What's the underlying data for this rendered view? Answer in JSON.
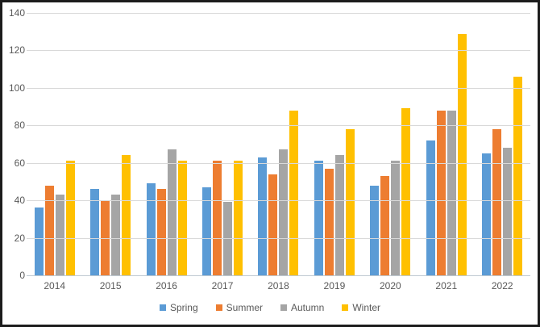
{
  "chart_data": {
    "type": "bar",
    "title": "",
    "categories": [
      "2014",
      "2015",
      "2016",
      "2017",
      "2018",
      "2019",
      "2020",
      "2021",
      "2022"
    ],
    "series": [
      {
        "name": "Spring",
        "color": "#5B9BD5",
        "values": [
          36,
          46,
          49,
          47,
          63,
          61,
          48,
          72,
          65
        ]
      },
      {
        "name": "Summer",
        "color": "#ED7D31",
        "values": [
          48,
          40,
          46,
          61,
          54,
          57,
          53,
          88,
          78
        ]
      },
      {
        "name": "Autumn",
        "color": "#A5A5A5",
        "values": [
          43,
          43,
          67,
          39,
          67,
          64,
          61,
          88,
          68
        ]
      },
      {
        "name": "Winter",
        "color": "#FFC000",
        "values": [
          61,
          64,
          61,
          61,
          88,
          78,
          89,
          129,
          106
        ]
      }
    ],
    "xlabel": "",
    "ylabel": "",
    "ylim": [
      0,
      140
    ],
    "ytick_step": 20,
    "ytick_labels": [
      "0",
      "20",
      "40",
      "60",
      "80",
      "100",
      "120",
      "140"
    ],
    "grid": "horizontal",
    "legend_position": "bottom"
  },
  "colors": {
    "text": "#595959",
    "gridline": "#d9d9d9",
    "axis_line": "#bfc9d1",
    "frame_border": "#1c1c1c",
    "background": "#ffffff"
  }
}
